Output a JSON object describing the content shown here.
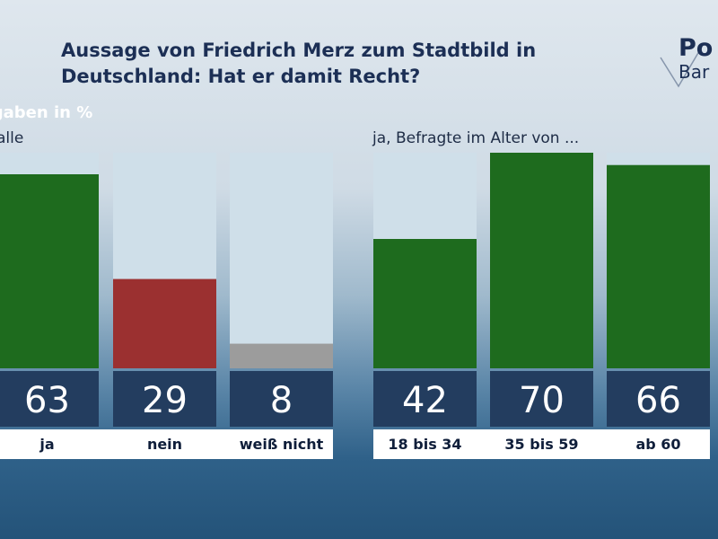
{
  "header": {
    "title": "Aussage von Friedrich Merz zum Stadtbild in Deutschland: Hat er damit Recht?",
    "units": "Angaben in %",
    "logo_top": "Po",
    "logo_bottom": "Bar"
  },
  "chart_data": [
    {
      "type": "bar",
      "group_label": "alle",
      "categories": [
        "ja",
        "nein",
        "weiß nicht"
      ],
      "values": [
        63,
        29,
        8
      ],
      "colors": [
        "#1e6b1e",
        "#9b3030",
        "#9c9c9c"
      ],
      "ylim": [
        0,
        70
      ]
    },
    {
      "type": "bar",
      "group_label": "ja, Befragte im Alter von ...",
      "categories": [
        "18 bis 34",
        "35 bis 59",
        "ab 60"
      ],
      "values": [
        42,
        70,
        66
      ],
      "colors": [
        "#1e6b1e",
        "#1e6b1e",
        "#1e6b1e"
      ],
      "ylim": [
        0,
        70
      ]
    }
  ],
  "colors": {
    "title": "#1c2f55",
    "track": "#cfdfe9",
    "value_box": "#233d5f",
    "label_box": "#ffffff"
  }
}
